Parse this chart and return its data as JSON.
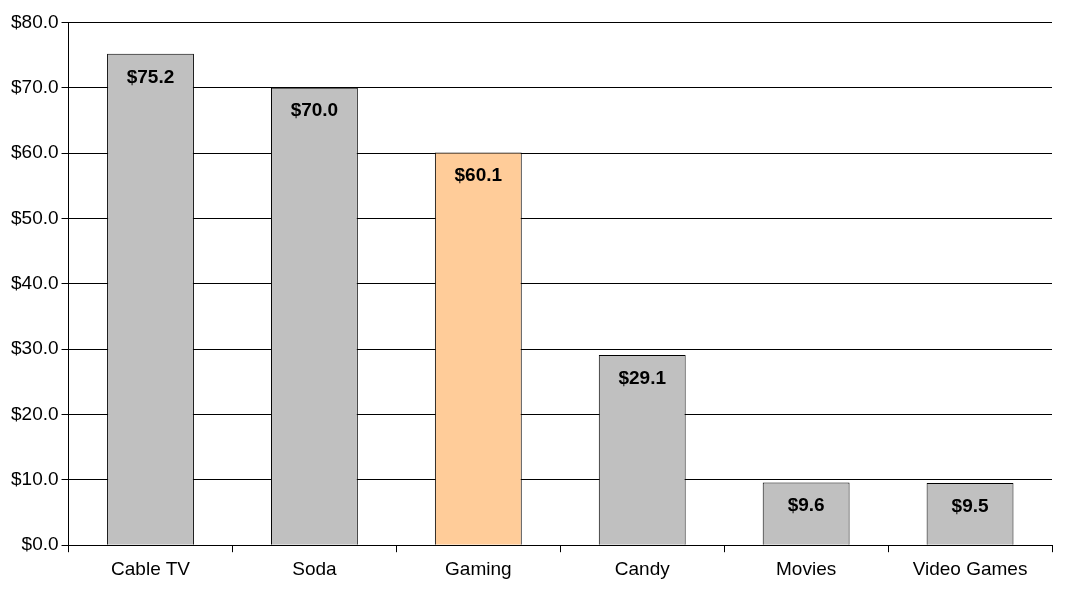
{
  "chart_data": {
    "type": "bar",
    "categories": [
      "Cable TV",
      "Soda",
      "Gaming",
      "Candy",
      "Movies",
      "Video Games"
    ],
    "values": [
      75.2,
      70.0,
      60.1,
      29.1,
      9.6,
      9.5
    ],
    "colors": [
      "#c0c0c0",
      "#c0c0c0",
      "#ffcc99",
      "#c0c0c0",
      "#c0c0c0",
      "#c0c0c0"
    ],
    "value_labels": [
      "$75.2",
      "$70.0",
      "$60.1",
      "$29.1",
      "$9.6",
      "$9.5"
    ],
    "ylim": [
      0,
      80
    ],
    "yticks": [
      {
        "value": 0,
        "label": "$0.0"
      },
      {
        "value": 10,
        "label": "$10.0"
      },
      {
        "value": 20,
        "label": "$20.0"
      },
      {
        "value": 30,
        "label": "$30.0"
      },
      {
        "value": 40,
        "label": "$40.0"
      },
      {
        "value": 50,
        "label": "$50.0"
      },
      {
        "value": 60,
        "label": "$60.0"
      },
      {
        "value": 70,
        "label": "$70.0"
      },
      {
        "value": 80,
        "label": "$80.0"
      }
    ],
    "grid": "y",
    "legend": false
  }
}
